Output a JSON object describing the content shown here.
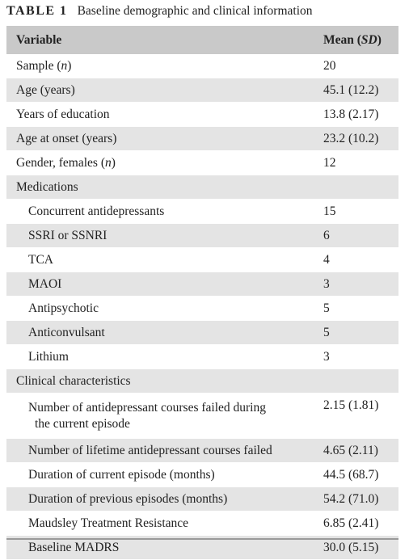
{
  "caption": {
    "label": "TABLE 1",
    "title": "Baseline demographic and clinical information"
  },
  "header": {
    "variable": "Variable",
    "mean_prefix": "Mean (",
    "mean_sd": "SD",
    "mean_suffix": ")"
  },
  "rows": [
    {
      "label_pre": "Sample (",
      "label_ital": "n",
      "label_post": ")",
      "value": "20"
    },
    {
      "label": "Age (years)",
      "value": "45.1 (12.2)"
    },
    {
      "label": "Years of education",
      "value": "13.8 (2.17)"
    },
    {
      "label": "Age at onset (years)",
      "value": "23.2 (10.2)"
    },
    {
      "label_pre": "Gender, females (",
      "label_ital": "n",
      "label_post": ")",
      "value": "12"
    },
    {
      "label": "Medications",
      "value": ""
    },
    {
      "label": "Concurrent antidepressants",
      "value": "15"
    },
    {
      "label": "SSRI or SSNRI",
      "value": "6"
    },
    {
      "label": "TCA",
      "value": "4"
    },
    {
      "label": "MAOI",
      "value": "3"
    },
    {
      "label": "Antipsychotic",
      "value": "5"
    },
    {
      "label": "Anticonvulsant",
      "value": "5"
    },
    {
      "label": "Lithium",
      "value": "3"
    },
    {
      "label": "Clinical characteristics",
      "value": ""
    },
    {
      "label_line1": "Number of antidepressant courses failed during",
      "label_line2": "the current episode",
      "value": "2.15 (1.81)"
    },
    {
      "label": "Number of lifetime antidepressant courses failed",
      "value": "4.65 (2.11)"
    },
    {
      "label": "Duration of current episode (months)",
      "value": "44.5 (68.7)"
    },
    {
      "label": "Duration of previous episodes (months)",
      "value": "54.2 (71.0)"
    },
    {
      "label": "Maudsley Treatment Resistance",
      "value": "6.85 (2.41)"
    },
    {
      "label": "Baseline MADRS",
      "value": "30.0 (5.15)"
    }
  ]
}
